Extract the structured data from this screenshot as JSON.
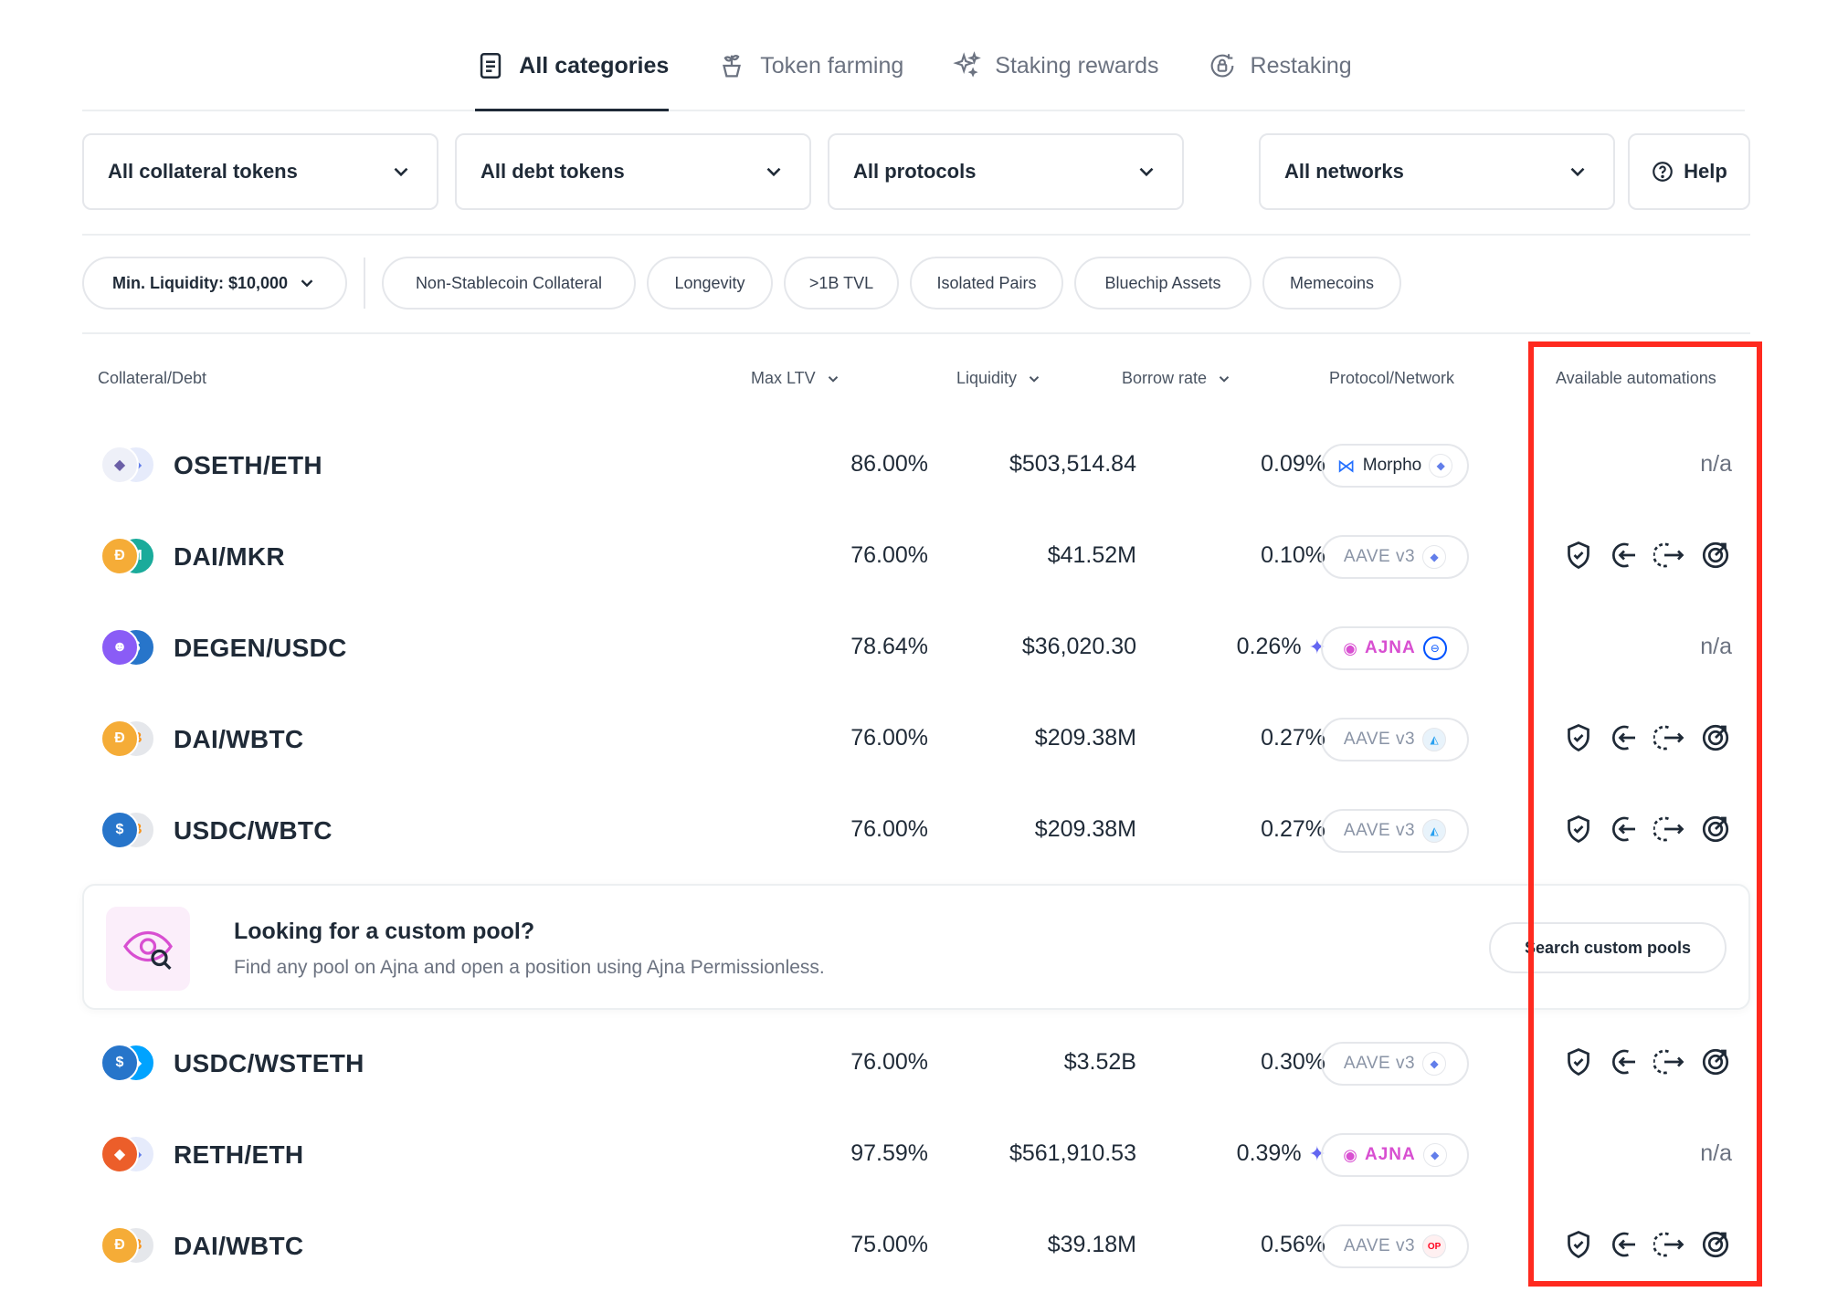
{
  "tabs": [
    {
      "label": "All categories",
      "icon": "document-icon",
      "active": true
    },
    {
      "label": "Token farming",
      "icon": "plant-icon",
      "active": false
    },
    {
      "label": "Staking rewards",
      "icon": "sparkles-icon",
      "active": false
    },
    {
      "label": "Restaking",
      "icon": "lock-cycle-icon",
      "active": false
    }
  ],
  "filters": {
    "collateral": "All collateral tokens",
    "debt": "All debt tokens",
    "protocols": "All protocols",
    "networks": "All networks",
    "help": "Help"
  },
  "chips": {
    "min_liquidity": "Min. Liquidity: $10,000",
    "items": [
      "Non-Stablecoin Collateral",
      "Longevity",
      ">1B TVL",
      "Isolated Pairs",
      "Bluechip Assets",
      "Memecoins"
    ]
  },
  "columns": {
    "pair": "Collateral/Debt",
    "ltv": "Max LTV",
    "liquidity": "Liquidity",
    "rate": "Borrow rate",
    "protocol": "Protocol/Network",
    "automations": "Available automations"
  },
  "na_label": "n/a",
  "rows": [
    {
      "pair": "OSETH/ETH",
      "ltv": "86.00%",
      "liquidity": "$503,514.84",
      "rate": "0.09%",
      "protocol": "Morpho"
    },
    {
      "pair": "DAI/MKR",
      "ltv": "76.00%",
      "liquidity": "$41.52M",
      "rate": "0.10%",
      "protocol": "AAVE v3"
    },
    {
      "pair": "DEGEN/USDC",
      "ltv": "78.64%",
      "liquidity": "$36,020.30",
      "rate": "0.26%",
      "protocol": "AJNA"
    },
    {
      "pair": "DAI/WBTC",
      "ltv": "76.00%",
      "liquidity": "$209.38M",
      "rate": "0.27%",
      "protocol": "AAVE v3"
    },
    {
      "pair": "USDC/WBTC",
      "ltv": "76.00%",
      "liquidity": "$209.38M",
      "rate": "0.27%",
      "protocol": "AAVE v3"
    },
    {
      "pair": "USDC/WSTETH",
      "ltv": "76.00%",
      "liquidity": "$3.52B",
      "rate": "0.30%",
      "protocol": "AAVE v3"
    },
    {
      "pair": "RETH/ETH",
      "ltv": "97.59%",
      "liquidity": "$561,910.53",
      "rate": "0.39%",
      "protocol": "AJNA"
    },
    {
      "pair": "DAI/WBTC",
      "ltv": "75.00%",
      "liquidity": "$39.18M",
      "rate": "0.56%",
      "protocol": "AAVE v3"
    }
  ],
  "network_badges": {
    "op": "OP"
  },
  "banner": {
    "title": "Looking for a custom pool?",
    "subtitle": "Find any pool on Ajna and open a position using Ajna Permissionless.",
    "button": "Search custom pools"
  },
  "colors": {
    "highlight": "#ff2a1f",
    "ajna": "#d84fd1",
    "text_dark": "#1f2a37"
  }
}
